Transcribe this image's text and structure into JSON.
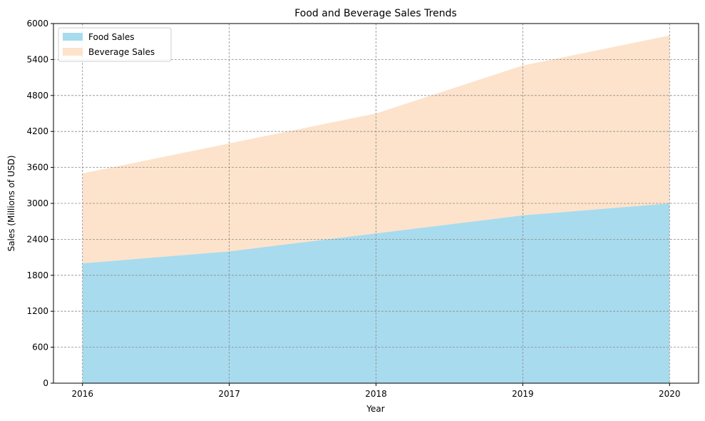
{
  "chart_data": {
    "type": "area",
    "stacked": true,
    "title": "Food and Beverage Sales Trends",
    "xlabel": "Year",
    "ylabel": "Sales (Millions of USD)",
    "x": [
      "2016",
      "2017",
      "2018",
      "2019",
      "2020"
    ],
    "ylim": [
      0,
      6000
    ],
    "yticks": [
      "0",
      "600",
      "1200",
      "1800",
      "2400",
      "3000",
      "3600",
      "4200",
      "4800",
      "5400",
      "6000"
    ],
    "grid": true,
    "legend_position": "top-left",
    "series": [
      {
        "name": "Food Sales",
        "values": [
          2000,
          2200,
          2500,
          2800,
          3000
        ],
        "color": "#a8dbee"
      },
      {
        "name": "Beverage Sales",
        "values": [
          1500,
          1800,
          2000,
          2500,
          2800
        ],
        "color": "#fde3cb"
      }
    ]
  }
}
